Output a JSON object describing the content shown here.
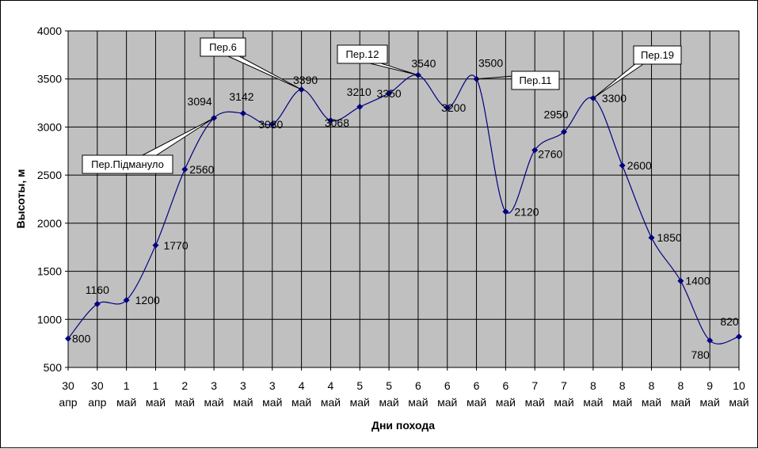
{
  "chart_data": {
    "type": "line",
    "title": "",
    "xlabel": "Дни похода",
    "ylabel": "Высоты, м",
    "ylim": [
      500,
      4000
    ],
    "yticks": [
      500,
      1000,
      1500,
      2000,
      2500,
      3000,
      3500,
      4000
    ],
    "grid": true,
    "smooth": true,
    "categories": [
      [
        "30",
        "апр"
      ],
      [
        "30",
        "апр"
      ],
      [
        "1",
        "май"
      ],
      [
        "1",
        "май"
      ],
      [
        "2",
        "май"
      ],
      [
        "3",
        "май"
      ],
      [
        "3",
        "май"
      ],
      [
        "3",
        "май"
      ],
      [
        "4",
        "май"
      ],
      [
        "4",
        "май"
      ],
      [
        "5",
        "май"
      ],
      [
        "5",
        "май"
      ],
      [
        "6",
        "май"
      ],
      [
        "6",
        "май"
      ],
      [
        "6",
        "май"
      ],
      [
        "6",
        "май"
      ],
      [
        "7",
        "май"
      ],
      [
        "7",
        "май"
      ],
      [
        "8",
        "май"
      ],
      [
        "8",
        "май"
      ],
      [
        "8",
        "май"
      ],
      [
        "8",
        "май"
      ],
      [
        "9",
        "май"
      ],
      [
        "10",
        "май"
      ]
    ],
    "values": [
      800,
      1160,
      1200,
      1770,
      2560,
      3094,
      3142,
      3030,
      3390,
      3068,
      3210,
      3350,
      3540,
      3200,
      3500,
      2120,
      2760,
      2950,
      3300,
      2600,
      1850,
      1400,
      780,
      820
    ],
    "data_labels": [
      "800",
      "1160",
      "1200",
      "1770",
      "2560",
      "3094",
      "3142",
      "3030",
      "3390",
      "3068",
      "3210",
      "3350",
      "3540",
      "3200",
      "3500",
      "2120",
      "2760",
      "2950",
      "3300",
      "2600",
      "1850",
      "1400",
      "780",
      "820"
    ],
    "annotations": [
      {
        "text": "Пер.Підмануло",
        "point_index": 5
      },
      {
        "text": "Пер.6",
        "point_index": 8
      },
      {
        "text": "Пер.12",
        "point_index": 12
      },
      {
        "text": "Пер.11",
        "point_index": 14
      },
      {
        "text": "Пер.19",
        "point_index": 18
      }
    ],
    "colors": {
      "plot_bg": "#c0c0c0",
      "line": "#000080",
      "marker": "#000080",
      "grid": "#000000"
    }
  }
}
